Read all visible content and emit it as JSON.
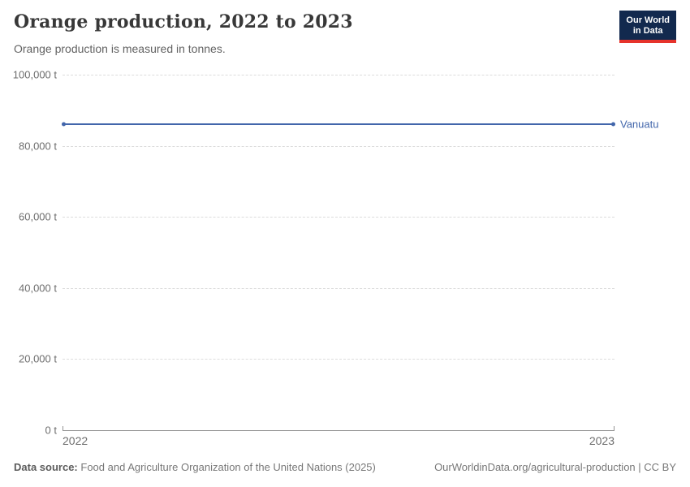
{
  "header": {
    "title": "Orange production, 2022 to 2023",
    "subtitle": "Orange production is measured in tonnes.",
    "logo": {
      "line1": "Our World",
      "line2": "in Data"
    }
  },
  "chart_data": {
    "type": "line",
    "title": "Orange production, 2022 to 2023",
    "x": [
      2022,
      2023
    ],
    "series": [
      {
        "name": "Vanuatu",
        "color": "#4266ab",
        "values": [
          86000,
          86000
        ]
      }
    ],
    "unit": "t",
    "ylim": [
      0,
      100000
    ],
    "yticks": [
      0,
      20000,
      40000,
      60000,
      80000,
      100000
    ],
    "grid": "dashed horizontal gridlines, solid x-axis at 0",
    "legend": "entity label at right end of line",
    "colors": {
      "line": "#4266ab",
      "gridline": "#dcdcdc",
      "axis": "#949494",
      "tick_text": "#6e6e6e"
    }
  },
  "footer": {
    "source_label": "Data source:",
    "source_text": "Food and Agriculture Organization of the United Nations (2025)",
    "attribution": "OurWorldinData.org/agricultural-production | CC BY"
  }
}
